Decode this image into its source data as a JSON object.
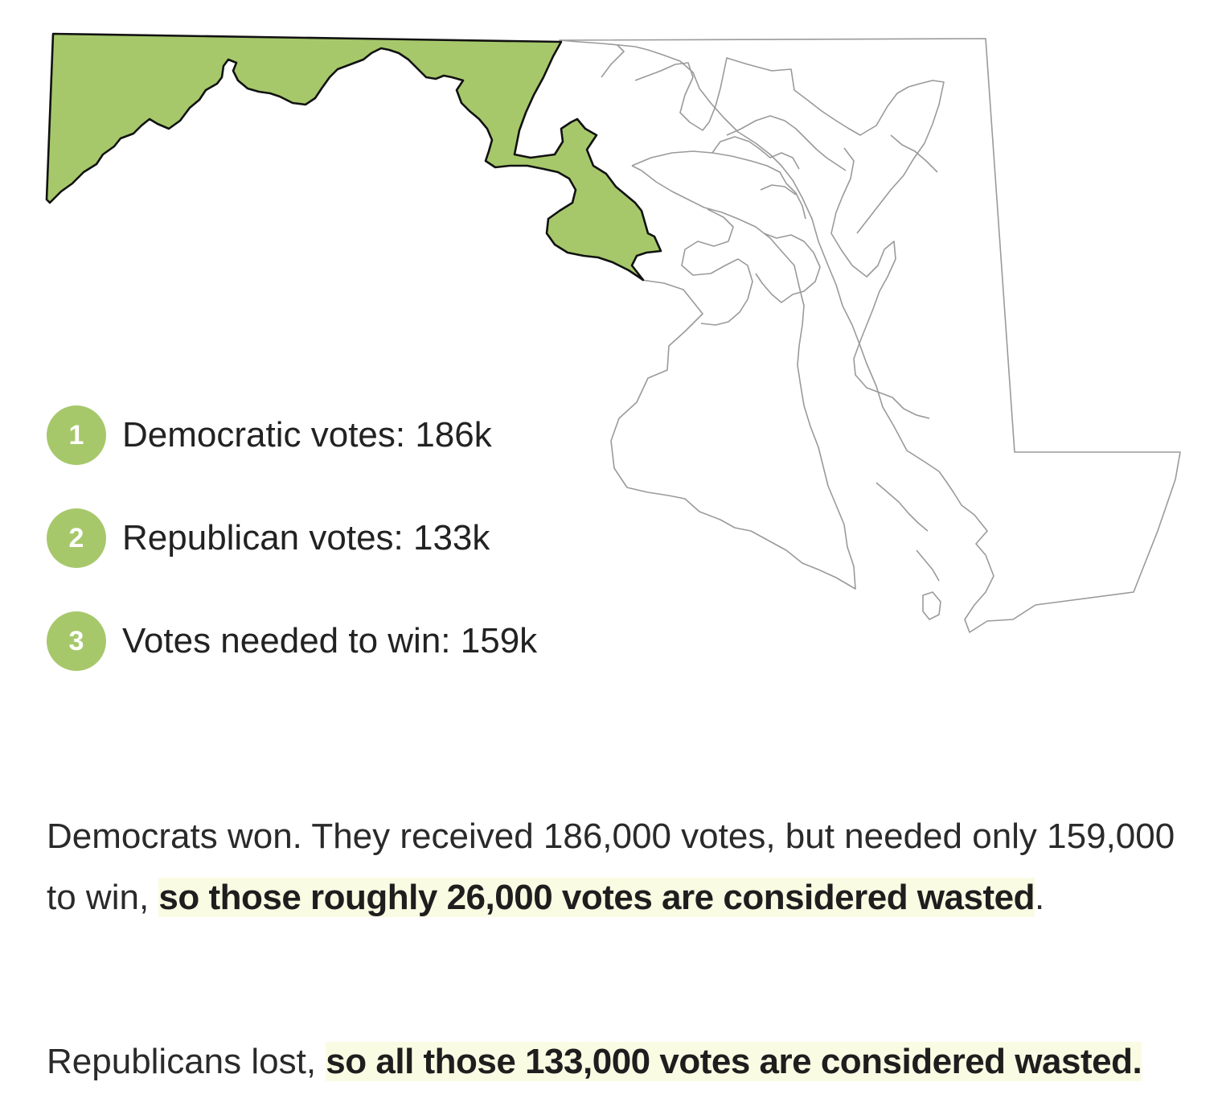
{
  "colors": {
    "district_fill": "#a6c86b",
    "district_stroke": "#111111",
    "county_stroke": "#9a9a9a",
    "badge_fill": "#a6c86b",
    "highlight": "#fafbe3"
  },
  "legend": {
    "items": [
      {
        "number": "1",
        "text": "Democratic votes: 186k"
      },
      {
        "number": "2",
        "text": "Republican votes: 133k"
      },
      {
        "number": "3",
        "text": "Votes needed to win: 159k"
      }
    ]
  },
  "paragraphs": {
    "p1": {
      "plain": "Democrats won. They received 186,000 votes, but needed only 159,000 to win, ",
      "highlight": "so those roughly 26,000 votes are considered wasted",
      "tail": "."
    },
    "p2": {
      "plain": "Republicans lost, ",
      "highlight": "so all those 133,000 votes are considered wasted."
    }
  }
}
